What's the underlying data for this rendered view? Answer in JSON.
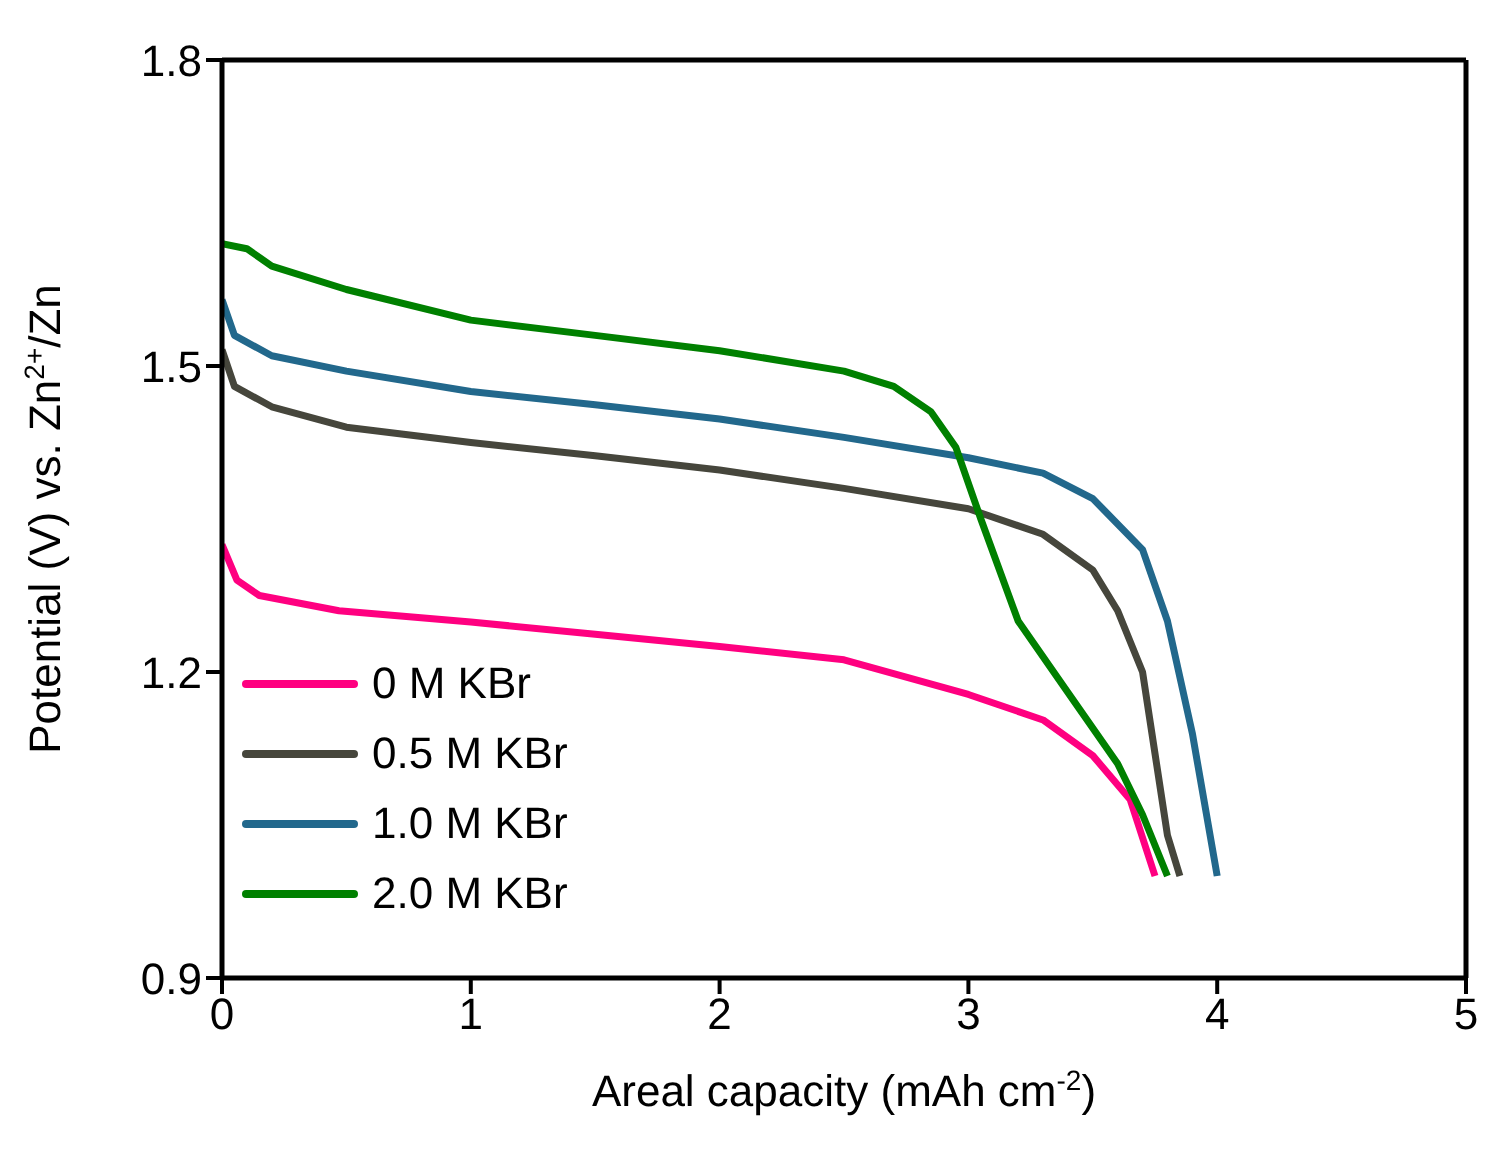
{
  "chart_data": {
    "type": "line",
    "xlabel": "Areal capacity (mAh cm$^{-2}$)",
    "ylabel": "Potential (V) vs. Zn$^{2+}$/Zn",
    "xlim": [
      0,
      5
    ],
    "xticks": [
      0,
      1,
      2,
      3,
      4,
      5
    ],
    "ylim": [
      0.9,
      1.8
    ],
    "yticks": [
      0.9,
      1.2,
      1.5,
      1.8
    ],
    "legend": "bottom left",
    "grid": false,
    "marker": "none",
    "line_style": "solid",
    "series": [
      {
        "name": "0 M KBr",
        "color": "#ff0080",
        "x": [
          0,
          0.06,
          0.15,
          0.47,
          1,
          1.5,
          2,
          2.5,
          3,
          3.3,
          3.5,
          3.65,
          3.75
        ],
        "values": [
          1.325,
          1.29,
          1.275,
          1.26,
          1.249,
          1.237,
          1.225,
          1.212,
          1.178,
          1.153,
          1.118,
          1.075,
          1.0
        ]
      },
      {
        "name": "0.5 M KBr",
        "color": "#46463c",
        "x": [
          0,
          0.05,
          0.2,
          0.5,
          1,
          1.5,
          2,
          2.5,
          3,
          3.3,
          3.5,
          3.6,
          3.7,
          3.75,
          3.8,
          3.85
        ],
        "values": [
          1.516,
          1.48,
          1.46,
          1.44,
          1.425,
          1.412,
          1.398,
          1.38,
          1.36,
          1.335,
          1.3,
          1.26,
          1.2,
          1.12,
          1.04,
          1.0
        ]
      },
      {
        "name": "1.0 M KBr",
        "color": "#22688c",
        "x": [
          0,
          0.05,
          0.2,
          0.5,
          1,
          1.5,
          2,
          2.5,
          3,
          3.3,
          3.5,
          3.7,
          3.8,
          3.9,
          4.0
        ],
        "values": [
          1.565,
          1.53,
          1.51,
          1.495,
          1.475,
          1.462,
          1.448,
          1.43,
          1.41,
          1.395,
          1.37,
          1.32,
          1.25,
          1.14,
          1.0
        ]
      },
      {
        "name": "2.0 M KBr",
        "color": "#008000",
        "x": [
          0,
          0.1,
          0.2,
          0.5,
          1,
          1.5,
          2,
          2.5,
          2.7,
          2.85,
          2.95,
          3.05,
          3.2,
          3.4,
          3.6,
          3.7,
          3.8
        ],
        "values": [
          1.62,
          1.615,
          1.598,
          1.575,
          1.545,
          1.53,
          1.515,
          1.495,
          1.48,
          1.455,
          1.42,
          1.35,
          1.25,
          1.18,
          1.11,
          1.06,
          1.0
        ]
      }
    ]
  }
}
